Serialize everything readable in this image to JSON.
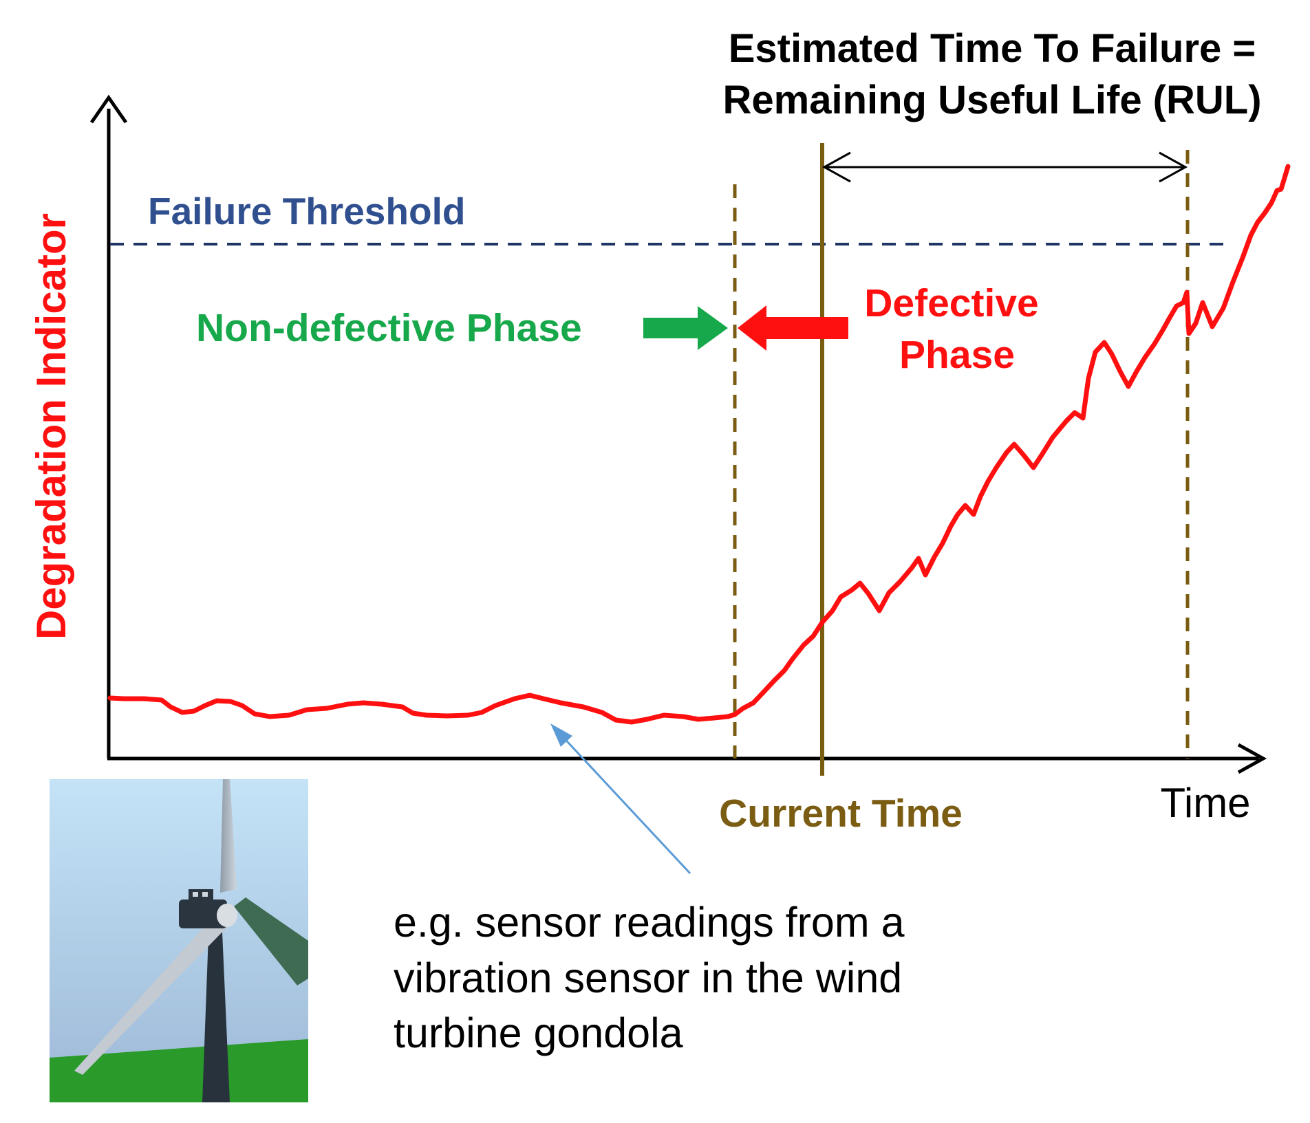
{
  "colors": {
    "signal": "#ff1010",
    "threshold": "#1f3566",
    "threshold_label": "#2f4f8f",
    "non_defective": "#16a84a",
    "defective": "#ff1010",
    "time_marker": "#7a5c12",
    "axes": "#000000",
    "pointer": "#5b9bd5"
  },
  "labels": {
    "rul_line1": "Estimated Time To Failure =",
    "rul_line2": "Remaining Useful Life (RUL)",
    "failure_threshold": "Failure Threshold",
    "non_defective_phase": "Non-defective Phase",
    "defective_line1": "Defective",
    "defective_line2": "Phase",
    "y_axis": "Degradation Indicator",
    "x_axis": "Time",
    "current_time": "Current Time",
    "caption_line1": "e.g. sensor readings from a",
    "caption_line2": "vibration sensor in the wind",
    "caption_line3": "turbine gondola"
  },
  "icons": {
    "y_axis_arrow": "arrow-up-icon",
    "x_axis_arrow": "arrow-right-icon",
    "rul_arrow": "double-arrow-icon",
    "green_arrow": "arrow-right-icon",
    "red_arrow": "arrow-left-icon",
    "pointer_arrow": "arrow-up-left-icon",
    "turbine_image": "wind-turbine-icon"
  }
}
